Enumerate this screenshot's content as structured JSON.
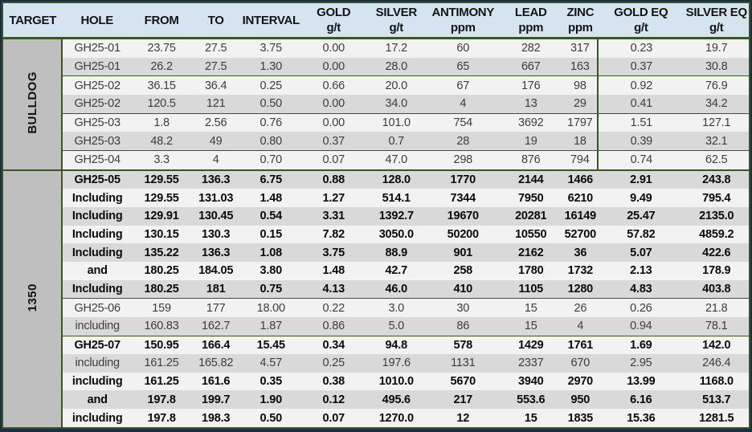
{
  "colors": {
    "header_bg": "#d6e4f0",
    "border_green": "#375623",
    "outer_edge_navy": "#1d2c47",
    "target_column_bg": "#bfbfbf",
    "row_stripe_light": "#f2f2f2",
    "row_stripe_dark": "#d9d9d9"
  },
  "table": {
    "columns": [
      {
        "label": "TARGET",
        "unit": ""
      },
      {
        "label": "HOLE",
        "unit": ""
      },
      {
        "label": "FROM",
        "unit": ""
      },
      {
        "label": "TO",
        "unit": ""
      },
      {
        "label": "INTERVAL",
        "unit": ""
      },
      {
        "label": "GOLD",
        "unit": "g/t"
      },
      {
        "label": "SILVER",
        "unit": "g/t"
      },
      {
        "label": "ANTIMONY",
        "unit": "ppm"
      },
      {
        "label": "LEAD",
        "unit": "ppm"
      },
      {
        "label": "ZINC",
        "unit": "ppm"
      },
      {
        "label": "GOLD EQ",
        "unit": "g/t"
      },
      {
        "label": "SILVER EQ",
        "unit": "g/t"
      }
    ],
    "sections": [
      {
        "target": "BULLDOG",
        "goldeq_divider": true,
        "rows": [
          {
            "bold": false,
            "group_start": false,
            "cells": [
              "GH25-01",
              "23.75",
              "27.5",
              "3.75",
              "0.00",
              "17.2",
              "60",
              "282",
              "317",
              "0.23",
              "19.7"
            ]
          },
          {
            "bold": false,
            "group_start": false,
            "cells": [
              "GH25-01",
              "26.2",
              "27.5",
              "1.30",
              "0.00",
              "28.0",
              "65",
              "667",
              "163",
              "0.37",
              "30.8"
            ]
          },
          {
            "bold": false,
            "group_start": true,
            "cells": [
              "GH25-02",
              "36.15",
              "36.4",
              "0.25",
              "0.66",
              "20.0",
              "67",
              "176",
              "98",
              "0.92",
              "76.9"
            ]
          },
          {
            "bold": false,
            "group_start": false,
            "cells": [
              "GH25-02",
              "120.5",
              "121",
              "0.50",
              "0.00",
              "34.0",
              "4",
              "13",
              "29",
              "0.41",
              "34.2"
            ]
          },
          {
            "bold": false,
            "group_start": true,
            "cells": [
              "GH25-03",
              "1.8",
              "2.56",
              "0.76",
              "0.00",
              "101.0",
              "754",
              "3692",
              "1797",
              "1.51",
              "127.1"
            ]
          },
          {
            "bold": false,
            "group_start": false,
            "cells": [
              "GH25-03",
              "48.2",
              "49",
              "0.80",
              "0.37",
              "0.7",
              "28",
              "19",
              "18",
              "0.39",
              "32.1"
            ]
          },
          {
            "bold": false,
            "group_start": true,
            "cells": [
              "GH25-04",
              "3.3",
              "4",
              "0.70",
              "0.07",
              "47.0",
              "298",
              "876",
              "794",
              "0.74",
              "62.5"
            ]
          }
        ]
      },
      {
        "target": "1350",
        "goldeq_divider": false,
        "rows": [
          {
            "bold": true,
            "group_start": false,
            "cells": [
              "GH25-05",
              "129.55",
              "136.3",
              "6.75",
              "0.88",
              "128.0",
              "1770",
              "2144",
              "1466",
              "2.91",
              "243.8"
            ]
          },
          {
            "bold": true,
            "group_start": false,
            "cells": [
              "Including",
              "129.55",
              "131.03",
              "1.48",
              "1.27",
              "514.1",
              "7344",
              "7950",
              "6210",
              "9.49",
              "795.4"
            ]
          },
          {
            "bold": true,
            "group_start": false,
            "cells": [
              "Including",
              "129.91",
              "130.45",
              "0.54",
              "3.31",
              "1392.7",
              "19670",
              "20281",
              "16149",
              "25.47",
              "2135.0"
            ]
          },
          {
            "bold": true,
            "group_start": false,
            "cells": [
              "Including",
              "130.15",
              "130.3",
              "0.15",
              "7.82",
              "3050.0",
              "50200",
              "10550",
              "52700",
              "57.82",
              "4859.2"
            ]
          },
          {
            "bold": true,
            "group_start": false,
            "cells": [
              "Including",
              "135.22",
              "136.3",
              "1.08",
              "3.75",
              "88.9",
              "901",
              "2162",
              "36",
              "5.07",
              "422.6"
            ]
          },
          {
            "bold": true,
            "group_start": false,
            "cells": [
              "and",
              "180.25",
              "184.05",
              "3.80",
              "1.48",
              "42.7",
              "258",
              "1780",
              "1732",
              "2.13",
              "178.9"
            ]
          },
          {
            "bold": true,
            "group_start": false,
            "cells": [
              "Including",
              "180.25",
              "181",
              "0.75",
              "4.13",
              "46.0",
              "410",
              "1105",
              "1280",
              "4.83",
              "403.8"
            ]
          },
          {
            "bold": false,
            "group_start": true,
            "cells": [
              "GH25-06",
              "159",
              "177",
              "18.00",
              "0.22",
              "3.0",
              "30",
              "15",
              "26",
              "0.26",
              "21.8"
            ]
          },
          {
            "bold": false,
            "group_start": false,
            "cells": [
              "including",
              "160.83",
              "162.7",
              "1.87",
              "0.86",
              "5.0",
              "86",
              "15",
              "4",
              "0.94",
              "78.1"
            ]
          },
          {
            "bold": true,
            "group_start": true,
            "cells": [
              "GH25-07",
              "150.95",
              "166.4",
              "15.45",
              "0.34",
              "94.8",
              "578",
              "1429",
              "1761",
              "1.69",
              "142.0"
            ]
          },
          {
            "bold": false,
            "group_start": false,
            "cells": [
              "including",
              "161.25",
              "165.82",
              "4.57",
              "0.25",
              "197.6",
              "1131",
              "2337",
              "670",
              "2.95",
              "246.4"
            ]
          },
          {
            "bold": true,
            "group_start": false,
            "cells": [
              "including",
              "161.25",
              "161.6",
              "0.35",
              "0.38",
              "1010.0",
              "5670",
              "3940",
              "2970",
              "13.99",
              "1168.0"
            ]
          },
          {
            "bold": true,
            "group_start": false,
            "cells": [
              "and",
              "197.8",
              "199.7",
              "1.90",
              "0.12",
              "495.6",
              "217",
              "553.6",
              "950",
              "6.16",
              "513.7"
            ]
          },
          {
            "bold": true,
            "group_start": false,
            "cells": [
              "including",
              "197.8",
              "198.3",
              "0.50",
              "0.07",
              "1270.0",
              "12",
              "15",
              "1835",
              "15.36",
              "1281.5"
            ]
          }
        ]
      }
    ]
  }
}
